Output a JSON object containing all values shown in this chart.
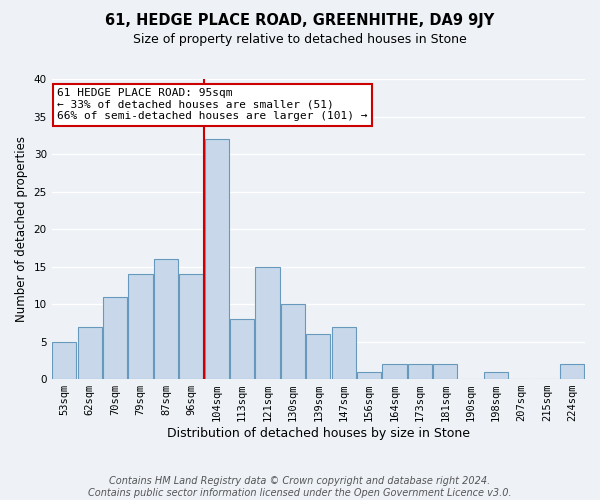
{
  "title": "61, HEDGE PLACE ROAD, GREENHITHE, DA9 9JY",
  "subtitle": "Size of property relative to detached houses in Stone",
  "xlabel": "Distribution of detached houses by size in Stone",
  "ylabel": "Number of detached properties",
  "bar_labels": [
    "53sqm",
    "62sqm",
    "70sqm",
    "79sqm",
    "87sqm",
    "96sqm",
    "104sqm",
    "113sqm",
    "121sqm",
    "130sqm",
    "139sqm",
    "147sqm",
    "156sqm",
    "164sqm",
    "173sqm",
    "181sqm",
    "190sqm",
    "198sqm",
    "207sqm",
    "215sqm",
    "224sqm"
  ],
  "bar_values": [
    5,
    7,
    11,
    14,
    16,
    14,
    32,
    8,
    15,
    10,
    6,
    7,
    1,
    2,
    2,
    2,
    0,
    1,
    0,
    0,
    2
  ],
  "bar_color": "#c8d8ea",
  "bar_edge_color": "#6699bb",
  "marker_index": 6,
  "marker_color": "#cc0000",
  "annotation_title": "61 HEDGE PLACE ROAD: 95sqm",
  "annotation_line1": "← 33% of detached houses are smaller (51)",
  "annotation_line2": "66% of semi-detached houses are larger (101) →",
  "annotation_box_color": "#ffffff",
  "annotation_box_edge": "#cc0000",
  "ylim": [
    0,
    40
  ],
  "yticks": [
    0,
    5,
    10,
    15,
    20,
    25,
    30,
    35,
    40
  ],
  "footnote": "Contains HM Land Registry data © Crown copyright and database right 2024.\nContains public sector information licensed under the Open Government Licence v3.0.",
  "background_color": "#eef2f7",
  "grid_color": "#ffffff",
  "title_fontsize": 10.5,
  "subtitle_fontsize": 9,
  "xlabel_fontsize": 9,
  "ylabel_fontsize": 8.5,
  "tick_fontsize": 7.5,
  "footnote_fontsize": 7
}
